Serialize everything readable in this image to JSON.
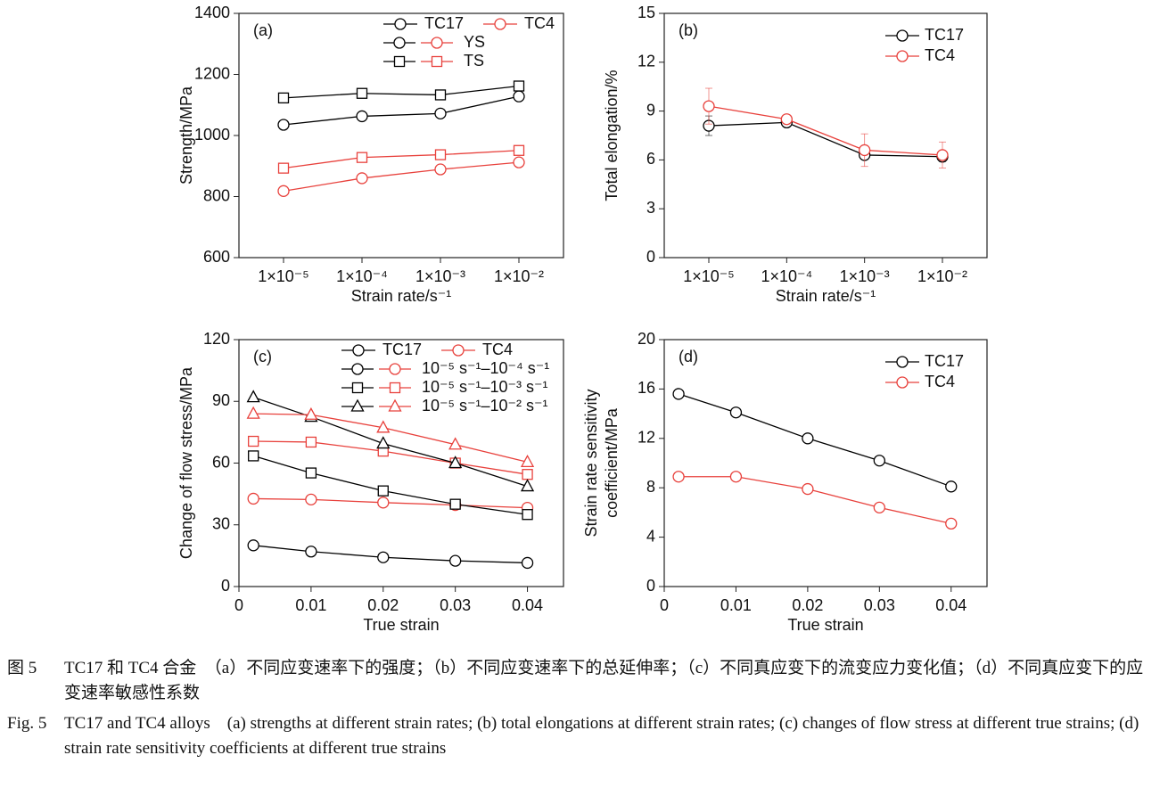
{
  "chart_data": [
    {
      "type": "line",
      "panel_label": "(a)",
      "ylabel": [
        "Strength/MPa"
      ],
      "xlabel": "Strain rate/s⁻¹",
      "categories": [
        "1×10⁻⁵",
        "1×10⁻⁴",
        "1×10⁻³",
        "1×10⁻²"
      ],
      "ylim": [
        600,
        1400
      ],
      "yticks": [
        600,
        800,
        1000,
        1200,
        1400
      ],
      "legend_columns": [
        {
          "label": "TC17",
          "color": "#000000"
        },
        {
          "label": "TC4",
          "color": "#e8413c"
        }
      ],
      "legend_rows": [
        {
          "label": "YS",
          "marker": "circle"
        },
        {
          "label": "TS",
          "marker": "square"
        }
      ],
      "series": [
        {
          "color": "#000000",
          "marker": "circle",
          "values": [
            1035,
            1063,
            1072,
            1128
          ]
        },
        {
          "color": "#000000",
          "marker": "square",
          "values": [
            1123,
            1138,
            1133,
            1162
          ]
        },
        {
          "color": "#e8413c",
          "marker": "circle",
          "values": [
            818,
            860,
            889,
            912
          ]
        },
        {
          "color": "#e8413c",
          "marker": "square",
          "values": [
            893,
            928,
            937,
            951
          ]
        }
      ]
    },
    {
      "type": "line",
      "panel_label": "(b)",
      "ylabel": [
        "Total elongation/%"
      ],
      "xlabel": "Strain rate/s⁻¹",
      "categories": [
        "1×10⁻⁵",
        "1×10⁻⁴",
        "1×10⁻³",
        "1×10⁻²"
      ],
      "ylim": [
        0,
        15
      ],
      "yticks": [
        0,
        3,
        6,
        9,
        12,
        15
      ],
      "legend": "upper right",
      "series": [
        {
          "name": "TC17",
          "color": "#000000",
          "marker": "circle",
          "values": [
            8.1,
            8.3,
            6.3,
            6.2
          ],
          "errors": [
            0.6,
            0.2,
            0.2,
            0.3
          ]
        },
        {
          "name": "TC4",
          "color": "#e8413c",
          "marker": "circle",
          "values": [
            9.3,
            8.5,
            6.6,
            6.3
          ],
          "errors": [
            1.1,
            0.2,
            1.0,
            0.8
          ]
        }
      ]
    },
    {
      "type": "line",
      "panel_label": "(c)",
      "ylabel": [
        "Change of flow stress/MPa"
      ],
      "xlabel": "True strain",
      "x": [
        0.002,
        0.01,
        0.02,
        0.03,
        0.04
      ],
      "xlim": [
        0,
        0.045
      ],
      "xticks": [
        0,
        0.01,
        0.02,
        0.03,
        0.04
      ],
      "ylim": [
        0,
        120
      ],
      "yticks": [
        0,
        30,
        60,
        90,
        120
      ],
      "legend_columns": [
        {
          "label": "TC17",
          "color": "#000000"
        },
        {
          "label": "TC4",
          "color": "#e8413c"
        }
      ],
      "legend_rows": [
        {
          "label": "10⁻⁵ s⁻¹–10⁻⁴ s⁻¹",
          "marker": "circle"
        },
        {
          "label": "10⁻⁵ s⁻¹–10⁻³ s⁻¹",
          "marker": "square"
        },
        {
          "label": "10⁻⁵ s⁻¹–10⁻² s⁻¹",
          "marker": "triangle"
        }
      ],
      "series": [
        {
          "color": "#000000",
          "marker": "circle",
          "values": [
            20,
            17,
            14.2,
            12.5,
            11.5
          ]
        },
        {
          "color": "#e8413c",
          "marker": "circle",
          "values": [
            42.7,
            42.3,
            40.8,
            39.6,
            38.3
          ]
        },
        {
          "color": "#000000",
          "marker": "square",
          "values": [
            63.5,
            55.2,
            46.5,
            40,
            35
          ]
        },
        {
          "color": "#e8413c",
          "marker": "square",
          "values": [
            70.6,
            70.2,
            65.8,
            60,
            54.5
          ]
        },
        {
          "color": "#000000",
          "marker": "triangle",
          "values": [
            92,
            82.5,
            69.5,
            60,
            48.7
          ]
        },
        {
          "color": "#e8413c",
          "marker": "triangle",
          "values": [
            84,
            83.5,
            77.2,
            69,
            60.5
          ]
        }
      ]
    },
    {
      "type": "line",
      "panel_label": "(d)",
      "ylabel": [
        "Strain rate sensitivity",
        "coefficient/MPa"
      ],
      "xlabel": "True strain",
      "x": [
        0.002,
        0.01,
        0.02,
        0.03,
        0.04
      ],
      "xlim": [
        0,
        0.045
      ],
      "xticks": [
        0,
        0.01,
        0.02,
        0.03,
        0.04
      ],
      "ylim": [
        0,
        20
      ],
      "yticks": [
        0,
        4,
        8,
        12,
        16,
        20
      ],
      "legend": "upper right",
      "series": [
        {
          "name": "TC17",
          "color": "#000000",
          "marker": "circle",
          "values": [
            15.6,
            14.1,
            12,
            10.2,
            8.1
          ]
        },
        {
          "name": "TC4",
          "color": "#e8413c",
          "marker": "circle",
          "values": [
            8.9,
            8.9,
            7.9,
            6.4,
            5.1
          ]
        }
      ]
    }
  ],
  "caption_cn": {
    "label": "图 5",
    "text": "TC17 和 TC4 合金　（a）不同应变速率下的强度；（b）不同应变速率下的总延伸率；（c）不同真应变下的流变应力变化值；（d）不同真应变下的应变速率敏感性系数"
  },
  "caption_en": {
    "label": "Fig. 5",
    "text": "TC17 and TC4 alloys　(a) strengths at different strain rates; (b) total elongations at different strain rates; (c) changes of flow stress at different true strains; (d) strain rate sensitivity coefficients at different true strains"
  }
}
